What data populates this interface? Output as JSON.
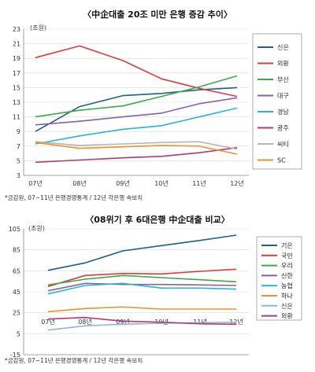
{
  "chart_data": [
    {
      "type": "line",
      "title": "〈中企대출 20조 미만 은행 증감 추이〉",
      "unit_label": "(조원)",
      "categories": [
        "07년",
        "08년",
        "09년",
        "10년",
        "11년",
        "12년"
      ],
      "yticks": [
        3,
        5,
        7,
        9,
        11,
        13,
        15,
        17,
        19,
        21,
        23
      ],
      "ylim": [
        3,
        23
      ],
      "series": [
        {
          "name": "신은",
          "color": "#1f5f8b",
          "values": [
            9.0,
            12.4,
            13.9,
            14.2,
            14.7,
            15.0
          ]
        },
        {
          "name": "외환",
          "color": "#e03a3a",
          "values": [
            19.1,
            20.7,
            18.7,
            16.2,
            14.9,
            13.8
          ]
        },
        {
          "name": "부산",
          "color": "#3aaa4a",
          "values": [
            11.0,
            11.9,
            12.5,
            13.8,
            15.1,
            16.6
          ]
        },
        {
          "name": "대구",
          "color": "#8a5fa8",
          "values": [
            9.9,
            10.4,
            11.0,
            11.5,
            12.8,
            13.6
          ]
        },
        {
          "name": "경남",
          "color": "#2ab4d6",
          "values": [
            7.3,
            8.4,
            9.3,
            9.8,
            11.0,
            12.2
          ]
        },
        {
          "name": "광주",
          "color": "#b03a78",
          "values": [
            4.8,
            5.1,
            5.4,
            5.6,
            6.1,
            6.8
          ]
        },
        {
          "name": "씨티",
          "color": "#b5b5b5",
          "values": [
            7.6,
            7.1,
            7.3,
            7.5,
            7.6,
            6.6
          ]
        },
        {
          "name": "SC",
          "color": "#f0922a",
          "values": [
            7.5,
            6.7,
            6.9,
            7.1,
            7.0,
            5.9
          ]
        }
      ],
      "note": "*금감원, 07~11년 은행경영통계 / 12년 각은행 속보치"
    },
    {
      "type": "line",
      "title": "〈08위기 후 6대은행 中企대출 비교〉",
      "unit_label": "(조원)",
      "categories": [
        "07년",
        "08년",
        "09년",
        "10년",
        "11년",
        "12년"
      ],
      "yticks": [
        -15,
        5,
        25,
        45,
        65,
        85,
        105
      ],
      "ylim": [
        -15,
        105
      ],
      "series": [
        {
          "name": "기은",
          "color": "#1f5f8b",
          "values": [
            65.5,
            72.5,
            84.0,
            89.0,
            94.0,
            99.0
          ]
        },
        {
          "name": "국민",
          "color": "#e03a3a",
          "values": [
            50.0,
            60.5,
            62.5,
            62.0,
            64.5,
            66.5
          ]
        },
        {
          "name": "우리",
          "color": "#3aaa4a",
          "values": [
            51.5,
            57.0,
            60.5,
            58.5,
            56.5,
            54.5
          ]
        },
        {
          "name": "신한",
          "color": "#8a5fa8",
          "values": [
            46.0,
            53.0,
            52.0,
            52.0,
            51.5,
            51.0
          ]
        },
        {
          "name": "농협",
          "color": "#2ab4d6",
          "values": [
            43.0,
            51.0,
            53.0,
            48.5,
            48.5,
            47.5
          ]
        },
        {
          "name": "하나",
          "color": "#f0922a",
          "values": [
            26.0,
            29.0,
            30.5,
            28.5,
            28.5,
            28.5
          ]
        },
        {
          "name": "신은",
          "color": "#94b4d8",
          "values": [
            8.5,
            12.5,
            14.0,
            15.0,
            15.5,
            16.0
          ]
        },
        {
          "name": "외환",
          "color": "#b03a78",
          "values": [
            19.0,
            20.5,
            17.0,
            16.0,
            14.5,
            14.0
          ]
        }
      ],
      "note": "*금감원, 07~11년 은행경영통계 / 12년 각은행 속보치"
    }
  ]
}
